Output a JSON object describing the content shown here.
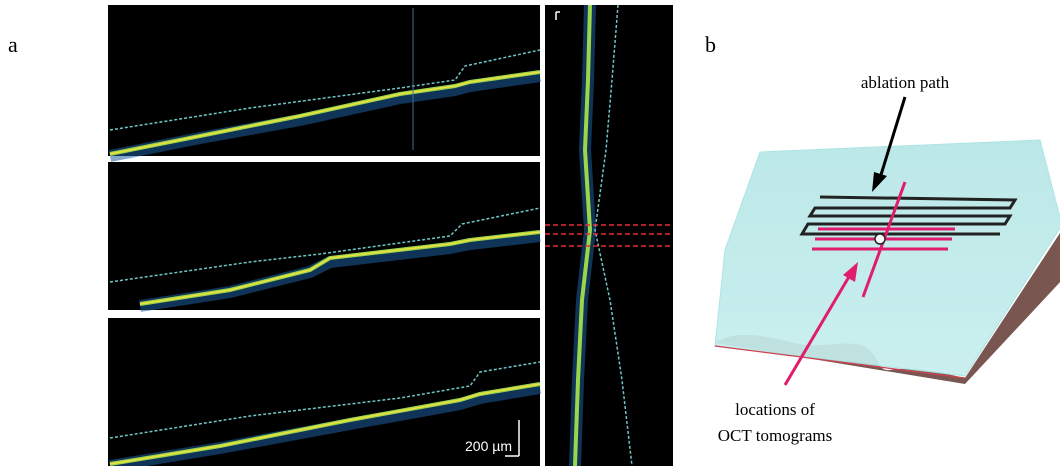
{
  "panel_a": {
    "label": "a",
    "scale_bar": "200 µm"
  },
  "panel_b": {
    "label": "b",
    "ablation_label": "ablation path",
    "tomogram_label": [
      "locations of",
      "OCT tomograms"
    ]
  }
}
